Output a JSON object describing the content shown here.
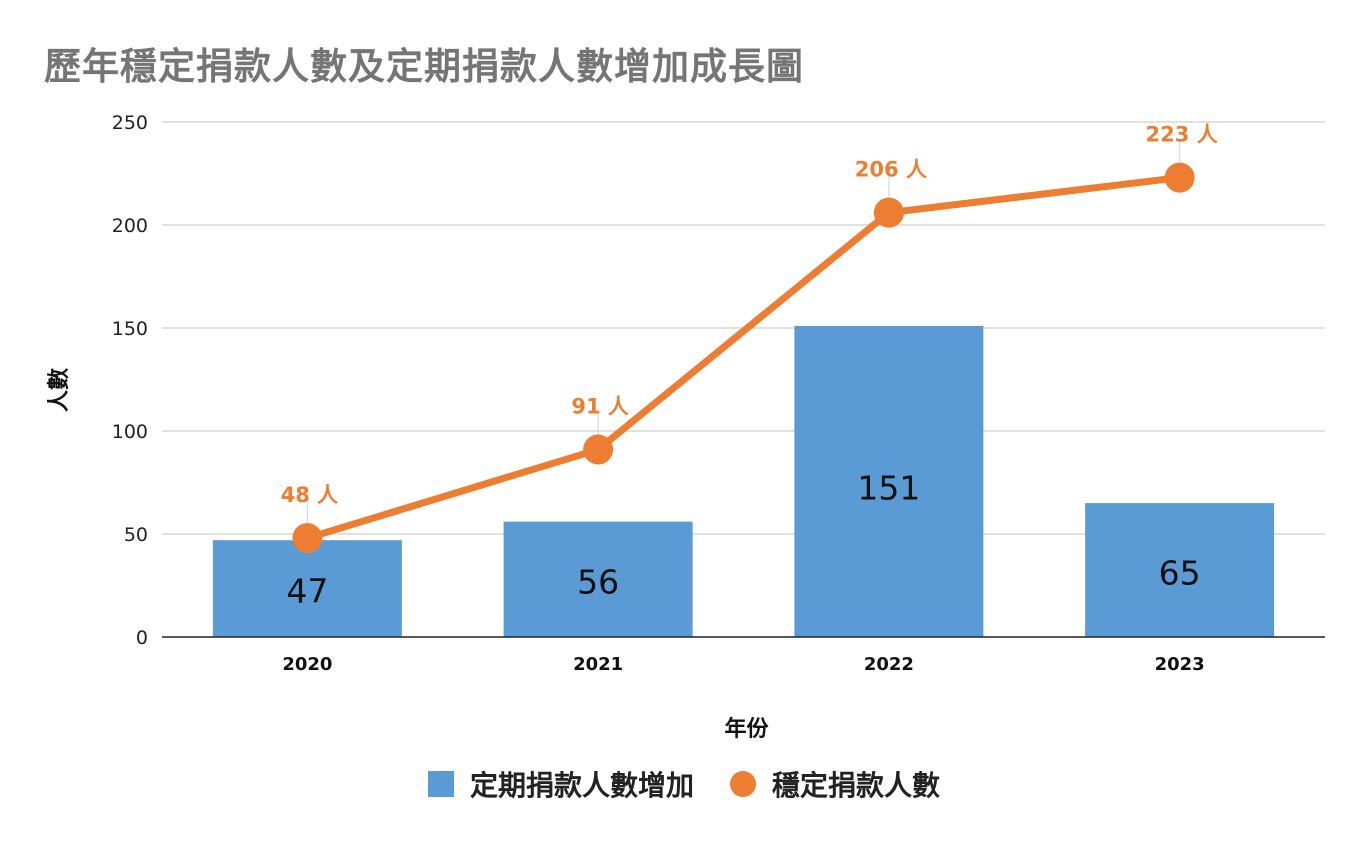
{
  "chart_data": {
    "type": "bar",
    "title": "歷年穩定捐款人數及定期捐款人數增加成長圖",
    "xlabel": "年份",
    "ylabel": "人數",
    "ylim": [
      0,
      250
    ],
    "yticks": [
      0,
      50,
      100,
      150,
      200,
      250
    ],
    "categories": [
      "2020",
      "2021",
      "2022",
      "2023"
    ],
    "series": [
      {
        "name": "定期捐款人數增加",
        "type": "bar",
        "color": "#5b9bd5",
        "values": [
          47,
          56,
          151,
          65
        ],
        "data_labels": [
          "47",
          "56",
          "151",
          "65"
        ]
      },
      {
        "name": "穩定捐款人數",
        "type": "line",
        "color": "#ed7d31",
        "values": [
          48,
          91,
          206,
          223
        ],
        "data_labels": [
          "48 人",
          "91 人",
          "206 人",
          "223 人"
        ]
      }
    ],
    "grid": true,
    "legend_position": "bottom"
  }
}
